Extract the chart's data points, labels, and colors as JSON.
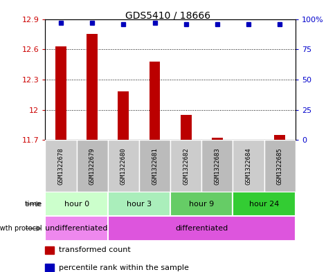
{
  "title": "GDS5410 / 18666",
  "samples": [
    "GSM1322678",
    "GSM1322679",
    "GSM1322680",
    "GSM1322681",
    "GSM1322682",
    "GSM1322683",
    "GSM1322684",
    "GSM1322685"
  ],
  "transformed_count": [
    12.63,
    12.75,
    12.18,
    12.48,
    11.95,
    11.72,
    11.69,
    11.75
  ],
  "percentile_rank": [
    97,
    97,
    96,
    97,
    96,
    96,
    96,
    96
  ],
  "ylim_left": [
    11.7,
    12.9
  ],
  "ylim_right": [
    0,
    100
  ],
  "yticks_left": [
    11.7,
    12.0,
    12.3,
    12.6,
    12.9
  ],
  "yticks_right": [
    0,
    25,
    50,
    75,
    100
  ],
  "ytick_labels_left": [
    "11.7",
    "12",
    "12.3",
    "12.6",
    "12.9"
  ],
  "ytick_labels_right": [
    "0",
    "25",
    "50",
    "75",
    "100%"
  ],
  "bar_color": "#bb0000",
  "marker_color": "#0000bb",
  "time_groups": [
    {
      "label": "hour 0",
      "start": 0,
      "end": 2,
      "color": "#ccffcc"
    },
    {
      "label": "hour 3",
      "start": 2,
      "end": 4,
      "color": "#aaeebb"
    },
    {
      "label": "hour 9",
      "start": 4,
      "end": 6,
      "color": "#66cc66"
    },
    {
      "label": "hour 24",
      "start": 6,
      "end": 8,
      "color": "#33cc33"
    }
  ],
  "protocol_groups": [
    {
      "label": "undifferentiated",
      "start": 0,
      "end": 2,
      "color": "#ee88ee"
    },
    {
      "label": "differentiated",
      "start": 2,
      "end": 8,
      "color": "#dd55dd"
    }
  ],
  "time_label": "time",
  "protocol_label": "growth protocol",
  "legend_items": [
    {
      "label": "transformed count",
      "color": "#bb0000"
    },
    {
      "label": "percentile rank within the sample",
      "color": "#0000bb"
    }
  ],
  "left_tick_color": "#cc0000",
  "right_tick_color": "#0000cc",
  "plot_area_bg": "#ffffff",
  "sample_box_color": "#cccccc",
  "sample_box_alt_color": "#bbbbbb"
}
